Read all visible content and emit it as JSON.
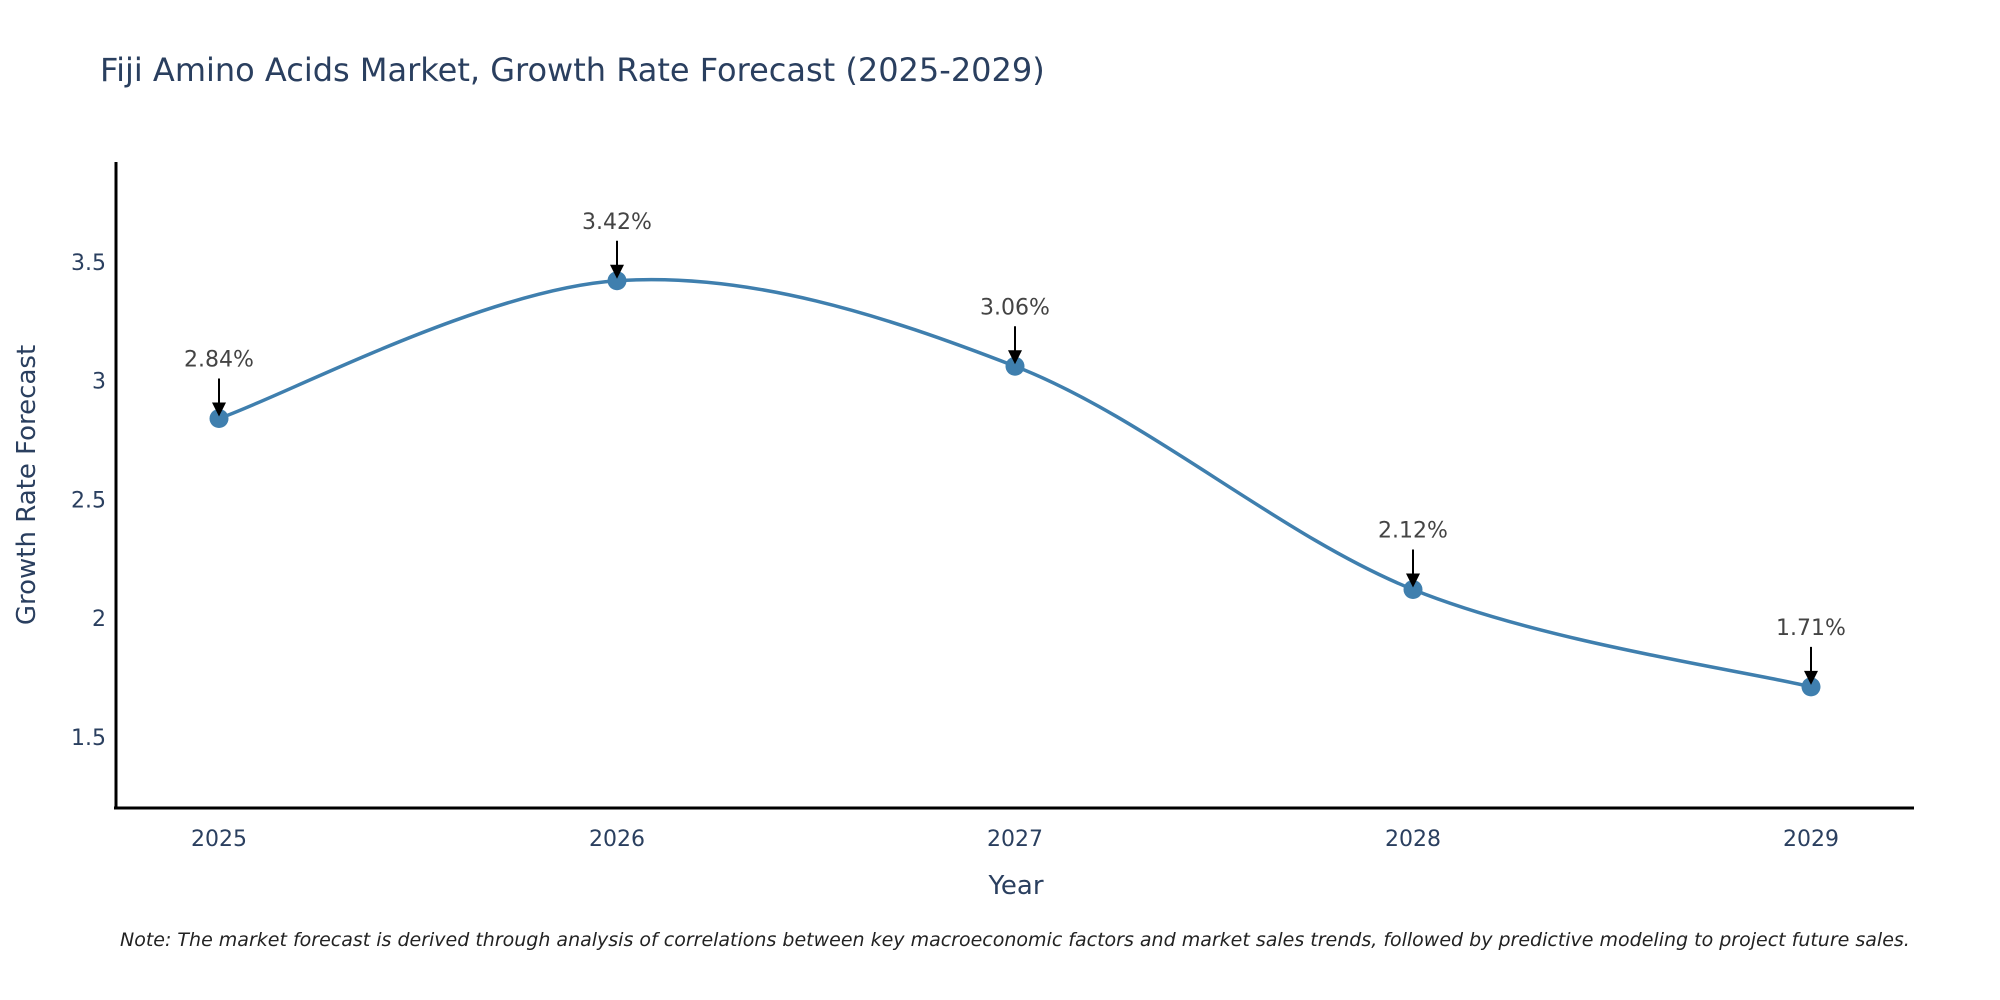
{
  "chart_data": {
    "type": "line",
    "title": "Fiji Amino Acids Market, Growth Rate Forecast (2025-2029)",
    "xlabel": "Year",
    "ylabel": "Growth Rate Forecast",
    "categories": [
      "2025",
      "2026",
      "2027",
      "2028",
      "2029"
    ],
    "values": [
      2.84,
      3.42,
      3.06,
      2.12,
      1.71
    ],
    "data_labels": [
      "2.84%",
      "3.42%",
      "3.06%",
      "2.12%",
      "1.71%"
    ],
    "ylim": [
      1.2,
      3.92
    ],
    "yticks": [
      1.5,
      2,
      2.5,
      3,
      3.5
    ],
    "ytick_labels": [
      "1.5",
      "2",
      "2.5",
      "3",
      "3.5"
    ],
    "line_shape": "spline",
    "grid": false,
    "series_color": "#3f7fae",
    "note": "Note: The market forecast is derived through analysis of correlations between key macroeconomic factors and market sales trends, followed by predictive modeling to project future sales."
  }
}
